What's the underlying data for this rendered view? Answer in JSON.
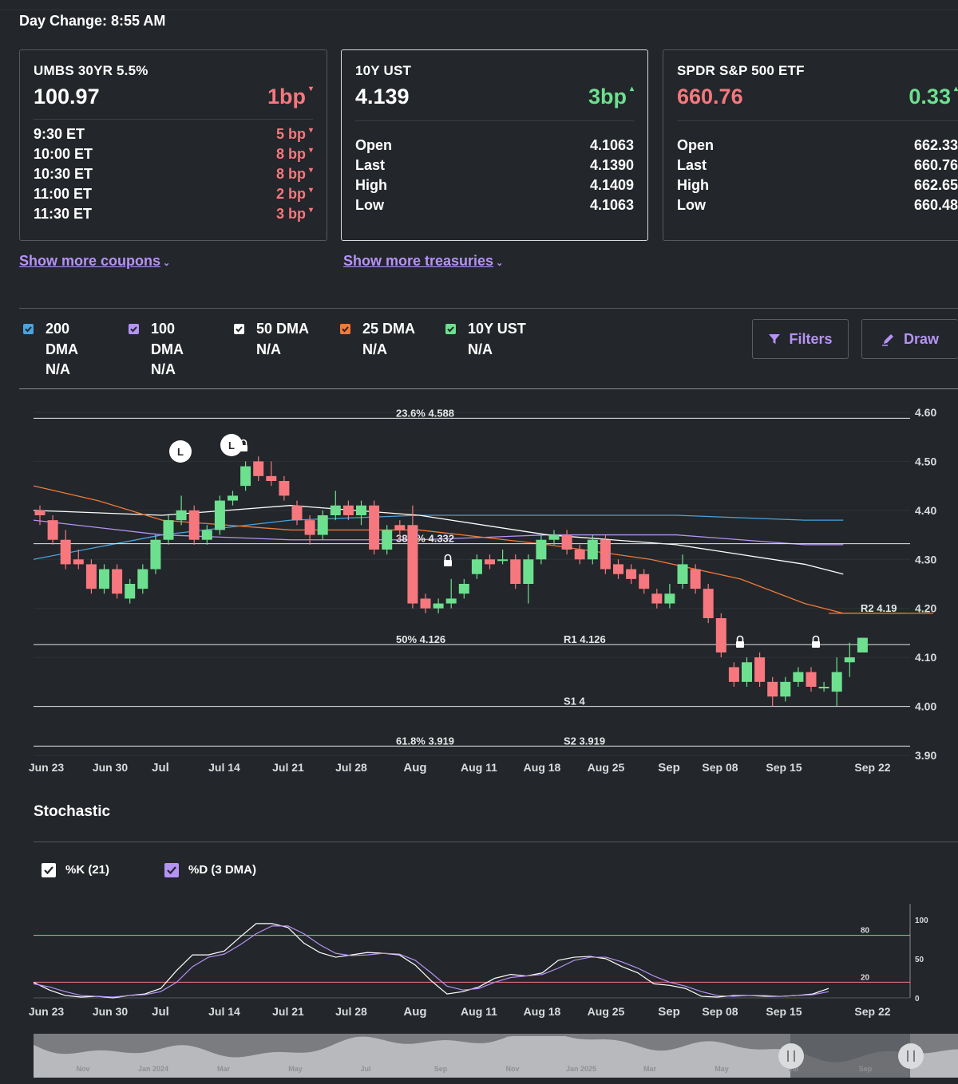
{
  "header": {
    "day_change": "Day Change: 8:55 AM"
  },
  "cards": [
    {
      "title": "UMBS 30YR 5.5%",
      "price": "100.97",
      "change": "1bp",
      "rows": [
        {
          "label": "9:30 ET",
          "value": "5 bp"
        },
        {
          "label": "10:00 ET",
          "value": "8 bp"
        },
        {
          "label": "10:30 ET",
          "value": "8 bp"
        },
        {
          "label": "11:00 ET",
          "value": "2 bp"
        },
        {
          "label": "11:30 ET",
          "value": "3 bp"
        }
      ]
    },
    {
      "title": "10Y UST",
      "price": "4.139",
      "change": "3bp",
      "rows": [
        {
          "label": "Open",
          "value": "4.1063"
        },
        {
          "label": "Last",
          "value": "4.1390"
        },
        {
          "label": "High",
          "value": "4.1409"
        },
        {
          "label": "Low",
          "value": "4.1063"
        }
      ]
    },
    {
      "title": "SPDR S&P 500 ETF",
      "price": "660.76",
      "change": "0.33",
      "rows": [
        {
          "label": "Open",
          "value": "662.33"
        },
        {
          "label": "Last",
          "value": "660.76"
        },
        {
          "label": "High",
          "value": "662.65"
        },
        {
          "label": "Low",
          "value": "660.48"
        }
      ]
    }
  ],
  "links": {
    "coupons": "Show more coupons",
    "treasuries": "Show more treasuries"
  },
  "legend": [
    {
      "line1": "200",
      "line2": "DMA",
      "line3": "N/A",
      "color": "#4aa3df"
    },
    {
      "line1": "100",
      "line2": "DMA",
      "line3": "N/A",
      "color": "#b593f5"
    },
    {
      "line1": "50 DMA",
      "line2": "N/A",
      "color": "#ffffff"
    },
    {
      "line1": "25 DMA",
      "line2": "N/A",
      "color": "#f07a3a"
    },
    {
      "line1": "10Y UST",
      "line2": "N/A",
      "color": "#6ce08f"
    }
  ],
  "buttons": {
    "filters": "Filters",
    "draw": "Draw"
  },
  "colors": {
    "up": "#6ce08f",
    "down": "#f6787e",
    "accent": "#b593f5",
    "ma200": "#4aa3df",
    "ma100": "#b593f5",
    "ma50": "#ffffff",
    "ma25": "#f07a3a"
  },
  "chart_data": [
    {
      "type": "candlestick",
      "ylim": [
        3.9,
        4.6
      ],
      "yticks": [
        "4.60",
        "4.50",
        "4.40",
        "4.30",
        "4.20",
        "4.10",
        "4.00",
        "3.90"
      ],
      "x_tick_labels": [
        "Jun 23",
        "Jun 30",
        "Jul",
        "Jul 14",
        "Jul 21",
        "Jul 28",
        "Aug",
        "Aug 11",
        "Aug 18",
        "Aug 25",
        "Sep",
        "Sep 08",
        "Sep 15",
        "Sep 22"
      ],
      "levels": [
        {
          "value": 4.588,
          "label": "23.6% 4.588"
        },
        {
          "value": 4.332,
          "label": "38.2% 4.332"
        },
        {
          "value": 4.126,
          "label": "50% 4.126"
        },
        {
          "value": 4.126,
          "label": "R1 4.126"
        },
        {
          "value": 4.0,
          "label": "S1 4"
        },
        {
          "value": 3.919,
          "label": "61.8% 3.919"
        },
        {
          "value": 3.919,
          "label": "S2 3.919"
        },
        {
          "value": 4.19,
          "label": "R2 4.19"
        }
      ],
      "markers": [
        {
          "label": "L",
          "index": 10
        },
        {
          "label": "L",
          "index": 14
        }
      ],
      "candles": [
        [
          4.4,
          4.39,
          4.41,
          4.37
        ],
        [
          4.38,
          4.34,
          4.39,
          4.33
        ],
        [
          4.34,
          4.29,
          4.36,
          4.28
        ],
        [
          4.3,
          4.29,
          4.32,
          4.28
        ],
        [
          4.29,
          4.24,
          4.3,
          4.23
        ],
        [
          4.24,
          4.28,
          4.29,
          4.23
        ],
        [
          4.28,
          4.23,
          4.29,
          4.22
        ],
        [
          4.22,
          4.25,
          4.26,
          4.21
        ],
        [
          4.24,
          4.28,
          4.29,
          4.23
        ],
        [
          4.28,
          4.34,
          4.35,
          4.27
        ],
        [
          4.34,
          4.38,
          4.39,
          4.33
        ],
        [
          4.38,
          4.4,
          4.43,
          4.37
        ],
        [
          4.4,
          4.34,
          4.41,
          4.33
        ],
        [
          4.34,
          4.36,
          4.37,
          4.33
        ],
        [
          4.36,
          4.42,
          4.43,
          4.35
        ],
        [
          4.42,
          4.43,
          4.44,
          4.41
        ],
        [
          4.45,
          4.49,
          4.5,
          4.44
        ],
        [
          4.5,
          4.47,
          4.51,
          4.46
        ],
        [
          4.47,
          4.46,
          4.5,
          4.45
        ],
        [
          4.46,
          4.43,
          4.47,
          4.42
        ],
        [
          4.41,
          4.38,
          4.42,
          4.37
        ],
        [
          4.38,
          4.35,
          4.39,
          4.33
        ],
        [
          4.35,
          4.39,
          4.4,
          4.34
        ],
        [
          4.39,
          4.41,
          4.44,
          4.38
        ],
        [
          4.41,
          4.39,
          4.42,
          4.38
        ],
        [
          4.39,
          4.41,
          4.42,
          4.37
        ],
        [
          4.41,
          4.32,
          4.42,
          4.31
        ],
        [
          4.32,
          4.36,
          4.37,
          4.31
        ],
        [
          4.37,
          4.36,
          4.38,
          4.34
        ],
        [
          4.37,
          4.21,
          4.41,
          4.2
        ],
        [
          4.22,
          4.2,
          4.23,
          4.19
        ],
        [
          4.2,
          4.21,
          4.22,
          4.19
        ],
        [
          4.21,
          4.22,
          4.26,
          4.2
        ],
        [
          4.23,
          4.25,
          4.26,
          4.22
        ],
        [
          4.27,
          4.3,
          4.31,
          4.26
        ],
        [
          4.3,
          4.29,
          4.31,
          4.28
        ],
        [
          4.3,
          4.3,
          4.32,
          4.29
        ],
        [
          4.3,
          4.25,
          4.31,
          4.24
        ],
        [
          4.25,
          4.3,
          4.31,
          4.21
        ],
        [
          4.3,
          4.34,
          4.35,
          4.29
        ],
        [
          4.34,
          4.35,
          4.36,
          4.33
        ],
        [
          4.35,
          4.32,
          4.36,
          4.31
        ],
        [
          4.32,
          4.3,
          4.33,
          4.29
        ],
        [
          4.3,
          4.34,
          4.35,
          4.29
        ],
        [
          4.34,
          4.28,
          4.35,
          4.27
        ],
        [
          4.29,
          4.27,
          4.3,
          4.26
        ],
        [
          4.28,
          4.26,
          4.29,
          4.25
        ],
        [
          4.27,
          4.24,
          4.28,
          4.23
        ],
        [
          4.23,
          4.21,
          4.24,
          4.2
        ],
        [
          4.21,
          4.23,
          4.25,
          4.2
        ],
        [
          4.25,
          4.29,
          4.31,
          4.24
        ],
        [
          4.28,
          4.24,
          4.29,
          4.23
        ],
        [
          4.24,
          4.18,
          4.25,
          4.17
        ],
        [
          4.18,
          4.11,
          4.19,
          4.1
        ],
        [
          4.08,
          4.05,
          4.09,
          4.04
        ],
        [
          4.05,
          4.09,
          4.1,
          4.04
        ],
        [
          4.1,
          4.05,
          4.11,
          4.04
        ],
        [
          4.05,
          4.02,
          4.06,
          4.0
        ],
        [
          4.02,
          4.05,
          4.06,
          4.01
        ],
        [
          4.05,
          4.07,
          4.08,
          4.04
        ],
        [
          4.07,
          4.04,
          4.08,
          4.03
        ],
        [
          4.04,
          4.04,
          4.05,
          4.03
        ],
        [
          4.03,
          4.07,
          4.1,
          4.0
        ],
        [
          4.09,
          4.1,
          4.13,
          4.06
        ],
        [
          4.11,
          4.14,
          4.14,
          4.11
        ]
      ],
      "moving_averages": {
        "ma200": [
          [
            0,
            4.3
          ],
          [
            10,
            4.35
          ],
          [
            20,
            4.38
          ],
          [
            30,
            4.39
          ],
          [
            40,
            4.39
          ],
          [
            50,
            4.39
          ],
          [
            60,
            4.38
          ],
          [
            63,
            4.38
          ]
        ],
        "ma100": [
          [
            0,
            4.38
          ],
          [
            10,
            4.35
          ],
          [
            20,
            4.34
          ],
          [
            30,
            4.34
          ],
          [
            40,
            4.35
          ],
          [
            50,
            4.35
          ],
          [
            60,
            4.33
          ],
          [
            63,
            4.33
          ]
        ],
        "ma50": [
          [
            0,
            4.4
          ],
          [
            10,
            4.39
          ],
          [
            20,
            4.41
          ],
          [
            30,
            4.39
          ],
          [
            40,
            4.35
          ],
          [
            50,
            4.33
          ],
          [
            60,
            4.29
          ],
          [
            63,
            4.27
          ]
        ],
        "ma25": [
          [
            0,
            4.45
          ],
          [
            5,
            4.42
          ],
          [
            10,
            4.38
          ],
          [
            20,
            4.36
          ],
          [
            30,
            4.36
          ],
          [
            40,
            4.33
          ],
          [
            48,
            4.3
          ],
          [
            55,
            4.26
          ],
          [
            60,
            4.21
          ],
          [
            63,
            4.19
          ],
          [
            70,
            4.19
          ]
        ]
      }
    },
    {
      "type": "line",
      "title": "Stochastic",
      "series": [
        {
          "name": "%K (21)",
          "values": [
            20,
            10,
            3,
            1,
            2,
            0,
            3,
            5,
            12,
            35,
            55,
            55,
            60,
            78,
            95,
            95,
            90,
            70,
            58,
            52,
            55,
            58,
            57,
            55,
            42,
            22,
            5,
            8,
            14,
            25,
            30,
            28,
            32,
            48,
            52,
            53,
            50,
            40,
            32,
            18,
            16,
            12,
            2,
            1,
            3,
            3,
            2,
            2,
            3,
            5,
            12
          ]
        },
        {
          "name": "%D (3 DMA)",
          "values": [
            18,
            14,
            8,
            3,
            2,
            1,
            3,
            4,
            8,
            20,
            40,
            52,
            56,
            68,
            82,
            92,
            92,
            82,
            68,
            57,
            54,
            55,
            57,
            56,
            48,
            32,
            15,
            10,
            12,
            20,
            26,
            28,
            30,
            38,
            48,
            52,
            52,
            46,
            38,
            28,
            20,
            15,
            8,
            3,
            2,
            3,
            3,
            2,
            3,
            4,
            8
          ]
        }
      ],
      "ylim": [
        0,
        100
      ],
      "yticks": [
        "100",
        "50",
        "0"
      ],
      "levels": [
        {
          "value": 80,
          "label": "80"
        },
        {
          "value": 20,
          "label": "20"
        }
      ],
      "x_tick_labels": [
        "Jun 23",
        "Jun 30",
        "Jul",
        "Jul 14",
        "Jul 21",
        "Jul 28",
        "Aug",
        "Aug 11",
        "Aug 18",
        "Aug 25",
        "Sep",
        "Sep 08",
        "Sep 15",
        "Sep 22"
      ]
    }
  ],
  "navigator": {
    "labels": [
      "Nov",
      "Jan 2024",
      "Mar",
      "May",
      "Jul",
      "Sep",
      "Nov",
      "Jan 2025",
      "Mar",
      "May",
      "Jul",
      "Sep"
    ]
  }
}
